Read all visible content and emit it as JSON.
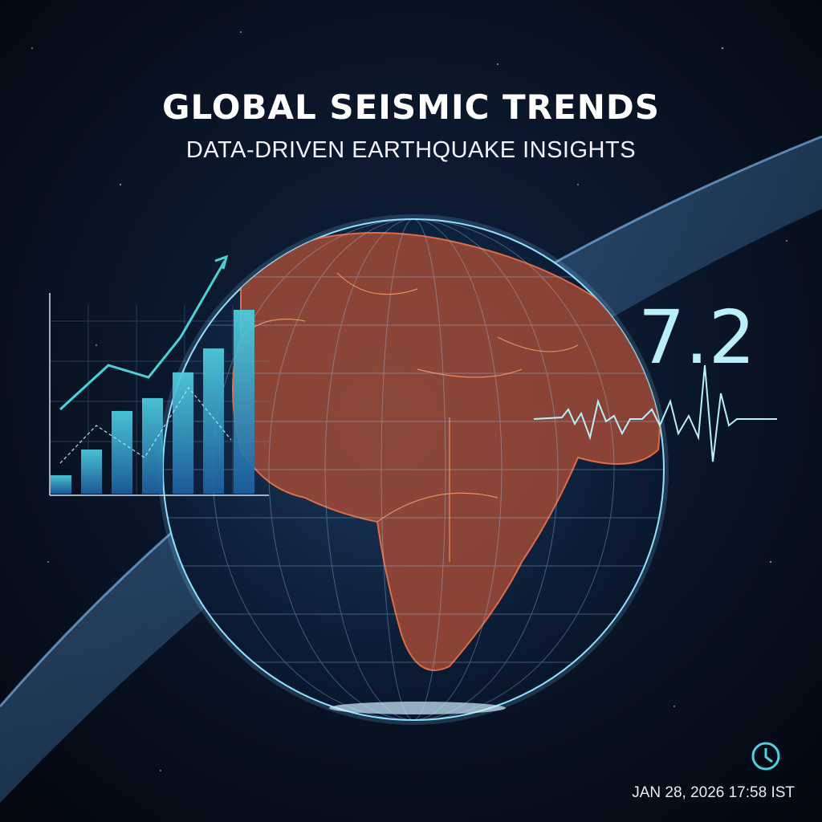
{
  "header": {
    "title": "GLOBAL SEISMIC TRENDS",
    "subtitle": "DATA-DRIVEN EARTHQUAKE INSIGHTS"
  },
  "inset_chart": {
    "type": "bar",
    "values": [
      1,
      2.4,
      4.5,
      5.2,
      6.6,
      7.9,
      10
    ],
    "ylim": [
      0,
      10
    ]
  },
  "magnitude": "7.2",
  "timestamp": "JAN 28, 2026 17:58 IST"
}
